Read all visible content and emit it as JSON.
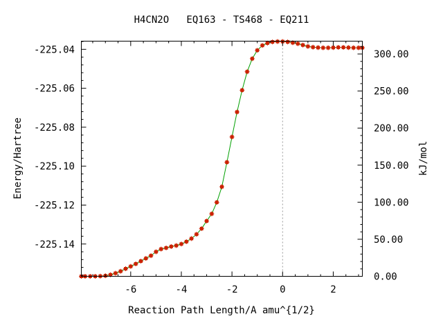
{
  "chart_data": {
    "type": "line",
    "title": "H4CN2O   EQ163 - TS468 - EQ211",
    "xlabel": "Reaction Path Length/A amu^{1/2}",
    "ylabel": "Energy/Hartree",
    "y2label": "kJ/mol",
    "xlim": [
      -7.95,
      3.15
    ],
    "ylim": [
      -225.1566,
      -225.0358
    ],
    "y2lim": [
      0,
      317.3
    ],
    "grid": false,
    "legend": "none",
    "x_ticks": [
      -6,
      -4,
      -2,
      0,
      2
    ],
    "x_tick_labels": [
      "-6",
      "-4",
      "-2",
      "0",
      "2"
    ],
    "y_ticks": [
      -225.04,
      -225.06,
      -225.08,
      -225.1,
      -225.12,
      -225.14
    ],
    "y_tick_labels": [
      "-225.04",
      "-225.06",
      "-225.08",
      "-225.10",
      "-225.12",
      "-225.14"
    ],
    "y2_ticks": [
      300,
      250,
      200,
      150,
      100,
      50,
      0
    ],
    "y2_tick_labels": [
      "300.00",
      "250.00",
      "200.00",
      "150.00",
      "100.00",
      "50.00",
      "0.00"
    ],
    "ts_marker_x": 0,
    "colors": {
      "line": "#00a000",
      "marker": "#cc2200",
      "ts_line": "#999999"
    },
    "series": [
      {
        "values": [
          {
            "x": -7.95,
            "y": -225.1566
          },
          {
            "x": -7.8,
            "y": -225.1566
          },
          {
            "x": -7.6,
            "y": -225.1566
          },
          {
            "x": -7.4,
            "y": -225.1566
          },
          {
            "x": -7.2,
            "y": -225.1565
          },
          {
            "x": -7.0,
            "y": -225.1563
          },
          {
            "x": -6.8,
            "y": -225.1558
          },
          {
            "x": -6.6,
            "y": -225.155
          },
          {
            "x": -6.4,
            "y": -225.154
          },
          {
            "x": -6.2,
            "y": -225.1527
          },
          {
            "x": -6.0,
            "y": -225.1515
          },
          {
            "x": -5.8,
            "y": -225.1502
          },
          {
            "x": -5.6,
            "y": -225.1488
          },
          {
            "x": -5.4,
            "y": -225.1474
          },
          {
            "x": -5.2,
            "y": -225.146
          },
          {
            "x": -5.0,
            "y": -225.144
          },
          {
            "x": -4.8,
            "y": -225.1426
          },
          {
            "x": -4.6,
            "y": -225.142
          },
          {
            "x": -4.4,
            "y": -225.1413
          },
          {
            "x": -4.2,
            "y": -225.1408
          },
          {
            "x": -4.0,
            "y": -225.14
          },
          {
            "x": -3.8,
            "y": -225.1388
          },
          {
            "x": -3.6,
            "y": -225.1372
          },
          {
            "x": -3.4,
            "y": -225.135
          },
          {
            "x": -3.2,
            "y": -225.1321
          },
          {
            "x": -3.0,
            "y": -225.1282
          },
          {
            "x": -2.8,
            "y": -225.1245
          },
          {
            "x": -2.6,
            "y": -225.1186
          },
          {
            "x": -2.4,
            "y": -225.1106
          },
          {
            "x": -2.2,
            "y": -225.098
          },
          {
            "x": -2.0,
            "y": -225.085
          },
          {
            "x": -1.8,
            "y": -225.0722
          },
          {
            "x": -1.6,
            "y": -225.061
          },
          {
            "x": -1.4,
            "y": -225.0515
          },
          {
            "x": -1.2,
            "y": -225.0448
          },
          {
            "x": -1.0,
            "y": -225.0405
          },
          {
            "x": -0.8,
            "y": -225.038
          },
          {
            "x": -0.6,
            "y": -225.0368
          },
          {
            "x": -0.4,
            "y": -225.0362
          },
          {
            "x": -0.2,
            "y": -225.036
          },
          {
            "x": 0.0,
            "y": -225.036
          },
          {
            "x": 0.2,
            "y": -225.0362
          },
          {
            "x": 0.4,
            "y": -225.0366
          },
          {
            "x": 0.6,
            "y": -225.0371
          },
          {
            "x": 0.8,
            "y": -225.0378
          },
          {
            "x": 1.0,
            "y": -225.0385
          },
          {
            "x": 1.2,
            "y": -225.0389
          },
          {
            "x": 1.4,
            "y": -225.0391
          },
          {
            "x": 1.6,
            "y": -225.0392
          },
          {
            "x": 1.8,
            "y": -225.0392
          },
          {
            "x": 2.0,
            "y": -225.0391
          },
          {
            "x": 2.2,
            "y": -225.039
          },
          {
            "x": 2.4,
            "y": -225.039
          },
          {
            "x": 2.6,
            "y": -225.0391
          },
          {
            "x": 2.8,
            "y": -225.0392
          },
          {
            "x": 3.0,
            "y": -225.0392
          },
          {
            "x": 3.15,
            "y": -225.0392
          }
        ]
      }
    ]
  }
}
